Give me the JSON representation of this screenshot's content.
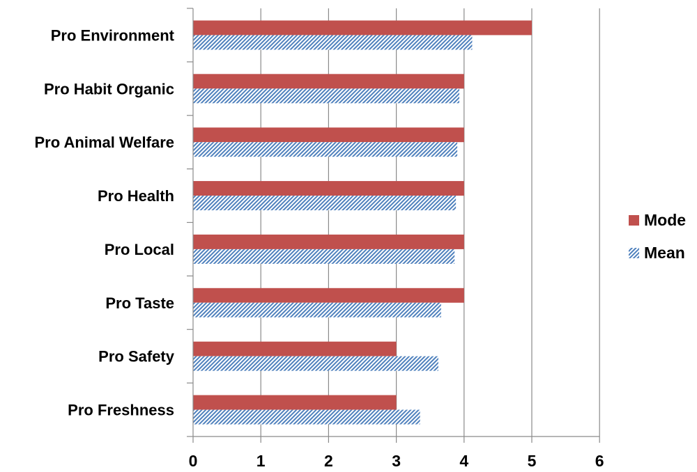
{
  "chart_data": {
    "type": "bar",
    "orientation": "horizontal",
    "categories": [
      "Pro Environment",
      "Pro Habit Organic",
      "Pro Animal Welfare",
      "Pro Health",
      "Pro Local",
      "Pro Taste",
      "Pro Safety",
      "Pro Freshness"
    ],
    "series": [
      {
        "name": "Mode",
        "values": [
          5,
          4,
          4,
          4,
          4,
          4,
          3,
          3
        ],
        "color": "#c0504d",
        "pattern": "solid"
      },
      {
        "name": "Mean",
        "values": [
          4.12,
          3.93,
          3.9,
          3.88,
          3.86,
          3.66,
          3.62,
          3.35
        ],
        "color": "#4f81bd",
        "pattern": "diagonal-hatch"
      }
    ],
    "x_ticks": [
      "0",
      "1",
      "2",
      "3",
      "4",
      "5",
      "6"
    ],
    "xlim": [
      0,
      6
    ],
    "title": "",
    "xlabel": "",
    "ylabel": "",
    "grid": "vertical",
    "legend_position": "right"
  }
}
